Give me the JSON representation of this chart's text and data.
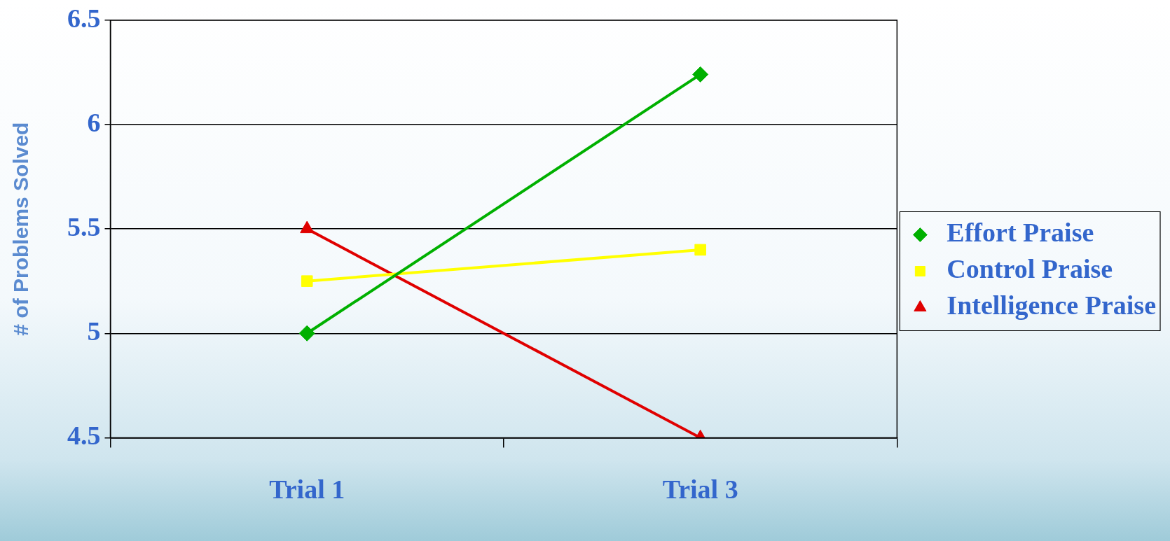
{
  "chart_data": {
    "type": "line",
    "ylabel": "# of Problems Solved",
    "categories": [
      "Trial 1",
      "Trial 3"
    ],
    "series": [
      {
        "name": "Effort Praise",
        "color": "#00b000",
        "values": [
          5,
          6.24
        ],
        "marker": "diamond"
      },
      {
        "name": "Control Praise",
        "color": "#ffff00",
        "values": [
          5.25,
          5.4
        ],
        "marker": "square"
      },
      {
        "name": "Intelligence Praise",
        "color": "#e00000",
        "values": [
          5.5,
          4.5
        ],
        "marker": "triangle"
      }
    ],
    "ylim": [
      4.5,
      6.5
    ],
    "yticks": [
      4.5,
      5,
      5.5,
      6,
      6.5
    ],
    "grid": "y",
    "legend": "right",
    "line_style": "solid"
  }
}
